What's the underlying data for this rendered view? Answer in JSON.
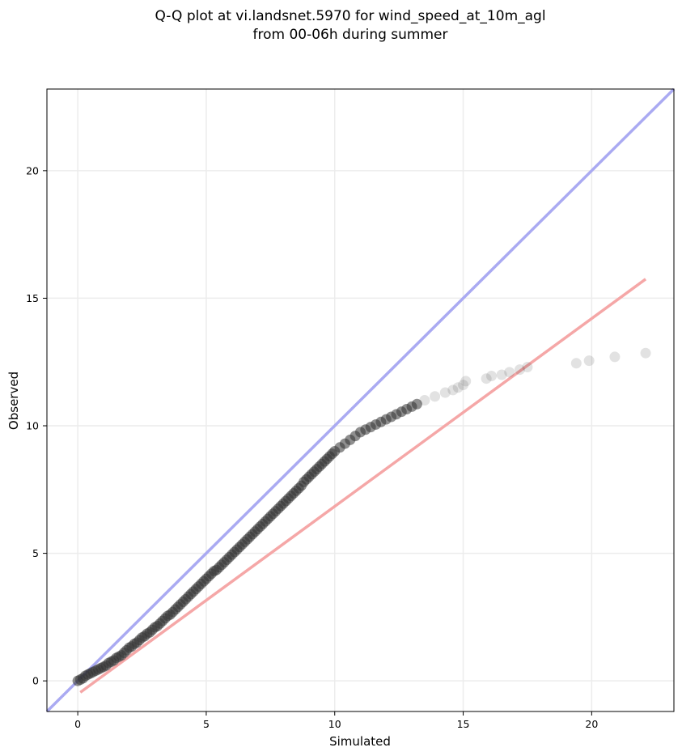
{
  "chart_data": {
    "type": "scatter",
    "title": "Q-Q plot at vi.landsnet.5970 for wind_speed_at_10m_agl",
    "subtitle": "from 00-06h during summer",
    "xlabel": "Simulated",
    "ylabel": "Observed",
    "xlim": [
      -1.2,
      23.2
    ],
    "ylim": [
      -1.2,
      23.2
    ],
    "xticks": [
      0,
      5,
      10,
      15,
      20
    ],
    "yticks": [
      0,
      5,
      10,
      15,
      20
    ],
    "xtick_labels": [
      "0",
      "5",
      "10",
      "15",
      "20"
    ],
    "ytick_labels": [
      "0",
      "5",
      "10",
      "15",
      "20"
    ],
    "grid": true,
    "identity_line": {
      "color": "#aaaaf2",
      "from": [
        -1.2,
        -1.2
      ],
      "to": [
        23.2,
        23.2
      ]
    },
    "fit_line": {
      "color": "#f5a7a7",
      "from": [
        0.1,
        -0.45
      ],
      "to": [
        22.1,
        15.75
      ]
    },
    "point_color": "#333333",
    "series": [
      {
        "x": [
          0.0,
          0.1,
          0.2,
          0.3,
          0.4,
          0.5,
          0.6,
          0.7,
          0.8,
          0.9,
          1.0,
          1.1,
          1.2,
          1.3,
          1.4,
          1.5,
          1.6,
          1.7,
          1.8,
          1.9,
          2.0,
          2.1,
          2.2,
          2.3,
          2.4,
          2.5,
          2.6,
          2.7,
          2.8,
          2.9,
          3.0,
          3.1,
          3.2,
          3.3,
          3.4,
          3.5,
          3.6,
          3.7,
          3.8,
          3.9,
          4.0,
          4.1,
          4.2,
          4.3,
          4.4,
          4.5,
          4.6,
          4.7,
          4.8,
          4.9,
          5.0,
          5.1,
          5.2,
          5.3,
          5.4,
          5.5,
          5.6,
          5.7,
          5.8,
          5.9,
          6.0,
          6.1,
          6.2,
          6.3,
          6.4,
          6.5,
          6.6,
          6.7,
          6.8,
          6.9,
          7.0,
          7.1,
          7.2,
          7.3,
          7.4,
          7.5,
          7.6,
          7.7,
          7.8,
          7.9,
          8.0,
          8.1,
          8.2,
          8.3,
          8.4,
          8.5,
          8.6,
          8.7,
          8.8,
          8.9,
          9.0,
          9.1,
          9.2,
          9.3,
          9.4,
          9.5,
          9.6,
          9.7,
          9.8,
          9.9,
          10.0,
          10.2,
          10.4,
          10.6,
          10.8,
          11.0,
          11.2,
          11.4,
          11.6,
          11.8,
          12.0,
          12.2,
          12.4,
          12.6,
          12.8,
          13.0,
          13.2,
          13.5,
          13.9,
          14.3,
          14.6,
          14.8,
          15.0,
          15.1,
          15.9,
          16.1,
          16.5,
          16.8,
          17.2,
          17.5,
          19.4,
          19.9,
          20.9,
          22.1
        ],
        "y": [
          0.0,
          0.05,
          0.1,
          0.2,
          0.25,
          0.3,
          0.35,
          0.4,
          0.45,
          0.5,
          0.55,
          0.6,
          0.7,
          0.75,
          0.8,
          0.9,
          0.95,
          1.0,
          1.1,
          1.2,
          1.3,
          1.35,
          1.45,
          1.5,
          1.6,
          1.7,
          1.75,
          1.85,
          1.9,
          2.0,
          2.1,
          2.15,
          2.25,
          2.35,
          2.45,
          2.55,
          2.6,
          2.7,
          2.8,
          2.9,
          3.0,
          3.1,
          3.2,
          3.3,
          3.4,
          3.5,
          3.6,
          3.7,
          3.8,
          3.9,
          4.0,
          4.1,
          4.2,
          4.3,
          4.35,
          4.45,
          4.55,
          4.65,
          4.75,
          4.85,
          4.95,
          5.05,
          5.15,
          5.25,
          5.35,
          5.45,
          5.55,
          5.65,
          5.75,
          5.85,
          5.95,
          6.05,
          6.15,
          6.25,
          6.35,
          6.45,
          6.55,
          6.65,
          6.75,
          6.85,
          6.95,
          7.05,
          7.15,
          7.25,
          7.35,
          7.45,
          7.55,
          7.65,
          7.8,
          7.9,
          8.0,
          8.1,
          8.2,
          8.3,
          8.4,
          8.5,
          8.6,
          8.7,
          8.8,
          8.9,
          9.0,
          9.15,
          9.3,
          9.45,
          9.6,
          9.75,
          9.85,
          9.95,
          10.05,
          10.15,
          10.25,
          10.35,
          10.45,
          10.55,
          10.65,
          10.75,
          10.85,
          11.0,
          11.15,
          11.3,
          11.4,
          11.5,
          11.6,
          11.75,
          11.85,
          11.95,
          12.0,
          12.1,
          12.2,
          12.3,
          12.45,
          12.55,
          12.7,
          12.85
        ]
      }
    ]
  }
}
